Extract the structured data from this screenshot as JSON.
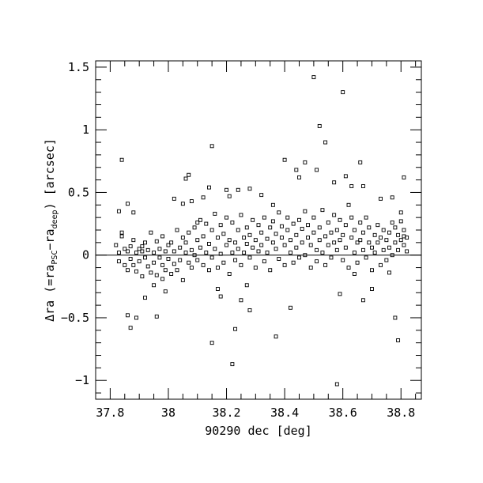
{
  "chart_data": {
    "type": "scatter",
    "title": "",
    "xlabel": "90290 dec [deg]",
    "ylabel": {
      "prefix": "Δra (=ra",
      "sub1": "PSC",
      "mid": "−ra",
      "sub2": "deep",
      "suffix": ") [arcsec]"
    },
    "xlim": [
      37.75,
      38.87
    ],
    "ylim": [
      -1.15,
      1.55
    ],
    "x_ticks": [
      {
        "value": 37.8,
        "label": "37.8"
      },
      {
        "value": 38.0,
        "label": "38"
      },
      {
        "value": 38.2,
        "label": "38.2"
      },
      {
        "value": 38.4,
        "label": "38.4"
      },
      {
        "value": 38.6,
        "label": "38.6"
      },
      {
        "value": 38.8,
        "label": "38.8"
      }
    ],
    "y_ticks": [
      {
        "value": -1.0,
        "label": "−1"
      },
      {
        "value": -0.5,
        "label": "−0.5"
      },
      {
        "value": 0.0,
        "label": "0"
      },
      {
        "value": 0.5,
        "label": "0.5"
      },
      {
        "value": 1.0,
        "label": "1"
      },
      {
        "value": 1.5,
        "label": "1.5"
      }
    ],
    "x_minor_step": 0.05,
    "y_minor_step": 0.1,
    "reference_line": 0,
    "grid": false,
    "marker": "open-square",
    "points": [
      [
        37.84,
        0.76
      ],
      [
        37.86,
        0.41
      ],
      [
        37.88,
        0.34
      ],
      [
        37.83,
        0.35
      ],
      [
        37.84,
        0.18
      ],
      [
        37.86,
        -0.48
      ],
      [
        37.87,
        -0.58
      ],
      [
        37.89,
        -0.5
      ],
      [
        37.91,
        0.07
      ],
      [
        37.92,
        -0.34
      ],
      [
        37.95,
        -0.24
      ],
      [
        37.96,
        -0.49
      ],
      [
        37.98,
        -0.19
      ],
      [
        37.99,
        -0.29
      ],
      [
        38.02,
        0.45
      ],
      [
        38.05,
        0.41
      ],
      [
        38.06,
        0.61
      ],
      [
        38.07,
        0.64
      ],
      [
        38.08,
        0.43
      ],
      [
        38.1,
        0.26
      ],
      [
        38.12,
        0.46
      ],
      [
        38.14,
        0.54
      ],
      [
        38.15,
        0.87
      ],
      [
        38.15,
        -0.7
      ],
      [
        38.17,
        -0.27
      ],
      [
        38.18,
        -0.33
      ],
      [
        38.2,
        0.52
      ],
      [
        38.21,
        0.47
      ],
      [
        38.22,
        -0.87
      ],
      [
        38.23,
        -0.59
      ],
      [
        38.24,
        0.52
      ],
      [
        38.25,
        -0.36
      ],
      [
        38.27,
        -0.24
      ],
      [
        38.28,
        0.53
      ],
      [
        38.28,
        -0.44
      ],
      [
        38.32,
        0.48
      ],
      [
        38.36,
        0.4
      ],
      [
        38.37,
        -0.65
      ],
      [
        38.4,
        0.76
      ],
      [
        38.42,
        -0.42
      ],
      [
        38.44,
        0.68
      ],
      [
        38.45,
        0.62
      ],
      [
        38.47,
        0.74
      ],
      [
        38.5,
        1.42
      ],
      [
        38.52,
        1.03
      ],
      [
        38.54,
        0.9
      ],
      [
        38.51,
        0.68
      ],
      [
        38.57,
        0.58
      ],
      [
        38.6,
        1.3
      ],
      [
        38.58,
        -1.03
      ],
      [
        38.59,
        -0.31
      ],
      [
        38.61,
        0.63
      ],
      [
        38.63,
        0.55
      ],
      [
        38.64,
        -0.15
      ],
      [
        38.66,
        0.74
      ],
      [
        38.67,
        0.55
      ],
      [
        38.67,
        -0.36
      ],
      [
        38.7,
        -0.27
      ],
      [
        38.73,
        0.45
      ],
      [
        38.77,
        0.46
      ],
      [
        38.78,
        -0.5
      ],
      [
        38.79,
        -0.68
      ],
      [
        38.81,
        0.62
      ],
      [
        38.81,
        0.15
      ],
      [
        38.8,
        0.27
      ],
      [
        38.76,
        -0.14
      ],
      [
        37.82,
        0.08
      ],
      [
        37.83,
        0.02
      ],
      [
        37.83,
        -0.05
      ],
      [
        37.84,
        0.15
      ],
      [
        37.85,
        -0.08
      ],
      [
        37.85,
        0.05
      ],
      [
        37.86,
        -0.12
      ],
      [
        37.86,
        0.03
      ],
      [
        37.87,
        0.07
      ],
      [
        37.87,
        -0.03
      ],
      [
        37.88,
        0.12
      ],
      [
        37.88,
        -0.08
      ],
      [
        37.89,
        0.02
      ],
      [
        37.89,
        -0.13
      ],
      [
        37.9,
        0.05
      ],
      [
        37.9,
        -0.05
      ],
      [
        37.91,
        -0.17
      ],
      [
        37.91,
        0.03
      ],
      [
        37.92,
        0.1
      ],
      [
        37.92,
        -0.02
      ],
      [
        37.93,
        -0.09
      ],
      [
        37.93,
        0.04
      ],
      [
        37.94,
        0.18
      ],
      [
        37.94,
        -0.14
      ],
      [
        37.95,
        0.02
      ],
      [
        37.95,
        -0.06
      ],
      [
        37.96,
        0.11
      ],
      [
        37.96,
        -0.16
      ],
      [
        37.97,
        0.05
      ],
      [
        37.97,
        -0.02
      ],
      [
        37.98,
        0.15
      ],
      [
        37.98,
        -0.08
      ],
      [
        37.99,
        0.03
      ],
      [
        37.99,
        -0.12
      ],
      [
        38.0,
        0.08
      ],
      [
        38.0,
        -0.03
      ],
      [
        38.01,
        -0.15
      ],
      [
        38.01,
        0.1
      ],
      [
        38.02,
        0.03
      ],
      [
        38.02,
        -0.07
      ],
      [
        38.03,
        0.2
      ],
      [
        38.03,
        -0.12
      ],
      [
        38.04,
        0.06
      ],
      [
        38.04,
        -0.04
      ],
      [
        38.05,
        0.14
      ],
      [
        38.05,
        -0.2
      ],
      [
        38.06,
        0.02
      ],
      [
        38.06,
        0.1
      ],
      [
        38.07,
        -0.06
      ],
      [
        38.07,
        0.18
      ],
      [
        38.08,
        0.04
      ],
      [
        38.08,
        -0.1
      ],
      [
        38.09,
        0.22
      ],
      [
        38.09,
        0.0
      ],
      [
        38.1,
        0.12
      ],
      [
        38.1,
        -0.04
      ],
      [
        38.11,
        0.28
      ],
      [
        38.11,
        0.06
      ],
      [
        38.12,
        -0.08
      ],
      [
        38.12,
        0.15
      ],
      [
        38.13,
        0.02
      ],
      [
        38.13,
        0.25
      ],
      [
        38.14,
        -0.12
      ],
      [
        38.14,
        0.09
      ],
      [
        38.15,
        0.2
      ],
      [
        38.15,
        -0.02
      ],
      [
        38.16,
        0.33
      ],
      [
        38.16,
        0.05
      ],
      [
        38.17,
        -0.1
      ],
      [
        38.17,
        0.14
      ],
      [
        38.18,
        0.24
      ],
      [
        38.18,
        0.01
      ],
      [
        38.19,
        -0.06
      ],
      [
        38.19,
        0.17
      ],
      [
        38.2,
        0.3
      ],
      [
        38.2,
        0.08
      ],
      [
        38.21,
        -0.15
      ],
      [
        38.21,
        0.12
      ],
      [
        38.22,
        0.02
      ],
      [
        38.22,
        0.26
      ],
      [
        38.23,
        0.1
      ],
      [
        38.23,
        -0.04
      ],
      [
        38.24,
        0.2
      ],
      [
        38.24,
        0.05
      ],
      [
        38.25,
        0.32
      ],
      [
        38.25,
        -0.08
      ],
      [
        38.26,
        0.14
      ],
      [
        38.26,
        0.02
      ],
      [
        38.27,
        0.22
      ],
      [
        38.27,
        0.09
      ],
      [
        38.28,
        -0.02
      ],
      [
        38.28,
        0.16
      ],
      [
        38.29,
        0.28
      ],
      [
        38.29,
        0.06
      ],
      [
        38.3,
        0.12
      ],
      [
        38.3,
        -0.1
      ],
      [
        38.31,
        0.24
      ],
      [
        38.31,
        0.03
      ],
      [
        38.32,
        0.18
      ],
      [
        38.32,
        0.08
      ],
      [
        38.33,
        -0.05
      ],
      [
        38.33,
        0.3
      ],
      [
        38.34,
        0.13
      ],
      [
        38.34,
        0.02
      ],
      [
        38.35,
        0.22
      ],
      [
        38.35,
        -0.12
      ],
      [
        38.36,
        0.1
      ],
      [
        38.36,
        0.27
      ],
      [
        38.37,
        0.05
      ],
      [
        38.37,
        0.17
      ],
      [
        38.38,
        0.34
      ],
      [
        38.38,
        -0.03
      ],
      [
        38.39,
        0.14
      ],
      [
        38.39,
        0.23
      ],
      [
        38.4,
        0.08
      ],
      [
        38.4,
        -0.08
      ],
      [
        38.41,
        0.2
      ],
      [
        38.41,
        0.3
      ],
      [
        38.42,
        0.02
      ],
      [
        38.42,
        0.12
      ],
      [
        38.43,
        0.25
      ],
      [
        38.43,
        -0.06
      ],
      [
        38.44,
        0.16
      ],
      [
        38.44,
        0.06
      ],
      [
        38.45,
        0.28
      ],
      [
        38.45,
        -0.02
      ],
      [
        38.46,
        0.1
      ],
      [
        38.46,
        0.21
      ],
      [
        38.47,
        0.35
      ],
      [
        38.47,
        0.0
      ],
      [
        38.48,
        0.14
      ],
      [
        38.48,
        0.24
      ],
      [
        38.49,
        -0.1
      ],
      [
        38.49,
        0.08
      ],
      [
        38.5,
        0.18
      ],
      [
        38.5,
        0.3
      ],
      [
        38.51,
        0.04
      ],
      [
        38.51,
        -0.05
      ],
      [
        38.52,
        0.22
      ],
      [
        38.52,
        0.12
      ],
      [
        38.53,
        0.36
      ],
      [
        38.53,
        0.02
      ],
      [
        38.54,
        0.15
      ],
      [
        38.54,
        -0.08
      ],
      [
        38.55,
        0.26
      ],
      [
        38.55,
        0.08
      ],
      [
        38.56,
        0.18
      ],
      [
        38.56,
        -0.02
      ],
      [
        38.57,
        0.1
      ],
      [
        38.57,
        0.32
      ],
      [
        38.58,
        0.04
      ],
      [
        38.58,
        0.2
      ],
      [
        38.59,
        0.12
      ],
      [
        38.59,
        0.28
      ],
      [
        38.6,
        -0.04
      ],
      [
        38.6,
        0.16
      ],
      [
        38.61,
        0.24
      ],
      [
        38.61,
        0.06
      ],
      [
        38.62,
        0.4
      ],
      [
        38.62,
        -0.1
      ],
      [
        38.63,
        0.14
      ],
      [
        38.63,
        0.3
      ],
      [
        38.64,
        0.02
      ],
      [
        38.64,
        0.2
      ],
      [
        38.65,
        0.1
      ],
      [
        38.65,
        -0.06
      ],
      [
        38.66,
        0.26
      ],
      [
        38.66,
        0.12
      ],
      [
        38.67,
        0.04
      ],
      [
        38.67,
        0.18
      ],
      [
        38.68,
        0.3
      ],
      [
        38.68,
        -0.02
      ],
      [
        38.69,
        0.1
      ],
      [
        38.69,
        0.22
      ],
      [
        38.7,
        0.06
      ],
      [
        38.7,
        -0.12
      ],
      [
        38.71,
        0.16
      ],
      [
        38.71,
        0.02
      ],
      [
        38.72,
        0.24
      ],
      [
        38.72,
        0.1
      ],
      [
        38.73,
        -0.08
      ],
      [
        38.73,
        0.14
      ],
      [
        38.74,
        0.04
      ],
      [
        38.74,
        0.2
      ],
      [
        38.75,
        0.12
      ],
      [
        38.75,
        -0.04
      ],
      [
        38.76,
        0.18
      ],
      [
        38.76,
        0.06
      ],
      [
        38.77,
        0.26
      ],
      [
        38.77,
        0.0
      ],
      [
        38.78,
        0.1
      ],
      [
        38.78,
        0.22
      ],
      [
        38.79,
        0.04
      ],
      [
        38.79,
        0.16
      ],
      [
        38.8,
        0.12
      ],
      [
        38.8,
        0.34
      ],
      [
        38.81,
        0.08
      ],
      [
        38.81,
        0.2
      ],
      [
        38.82,
        0.14
      ],
      [
        38.82,
        0.03
      ]
    ]
  }
}
